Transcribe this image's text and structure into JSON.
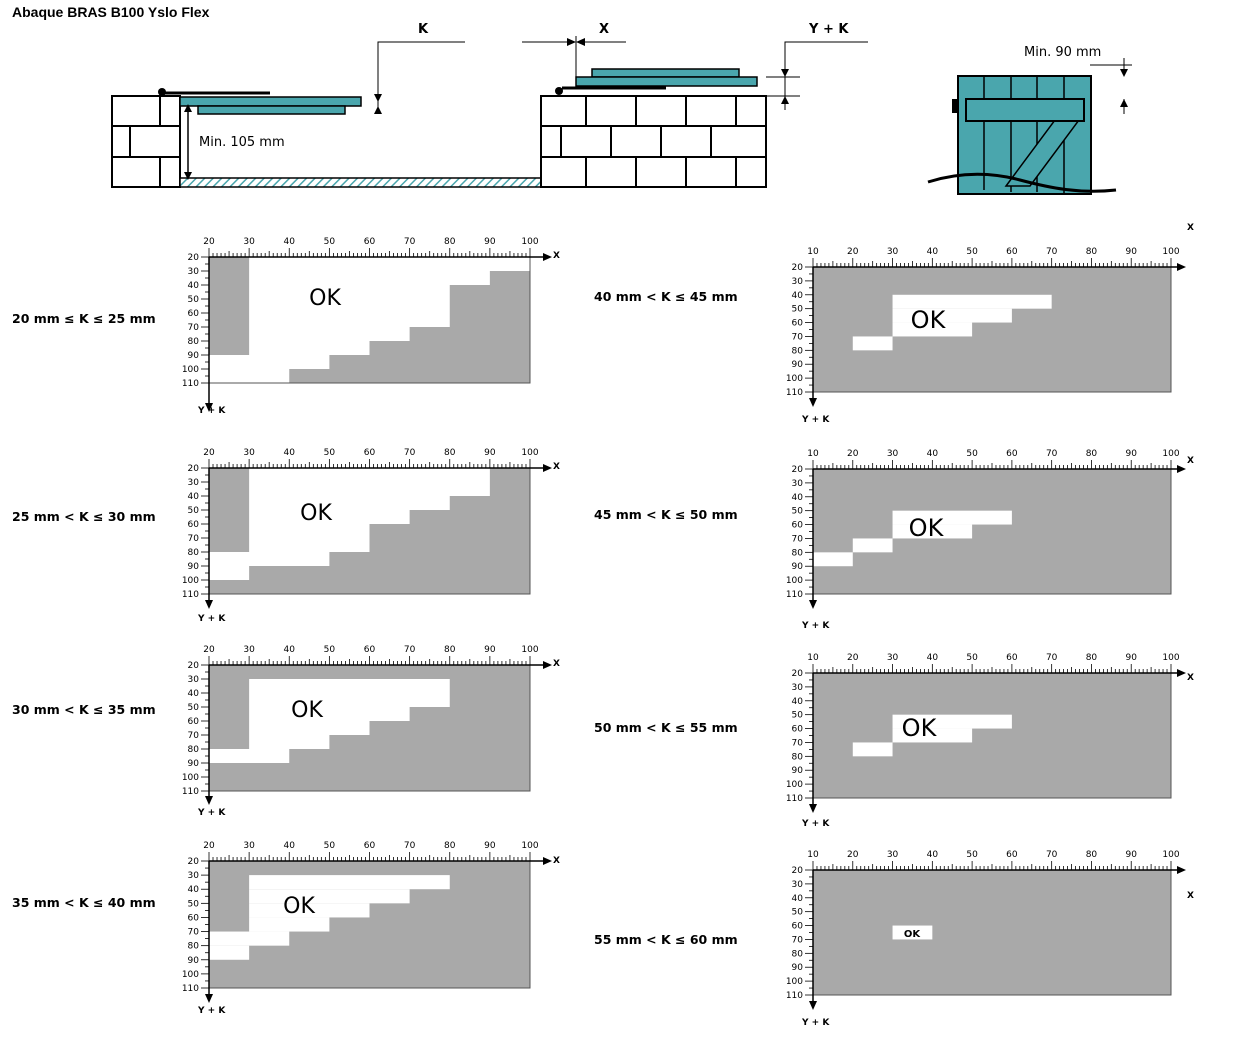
{
  "title": "Abaque BRAS B100 Yslo Flex",
  "diagram": {
    "k_label": "K",
    "x_label": "X",
    "yk_label": "Y + K",
    "min_105": "Min. 105 mm",
    "min_90": "Min. 90 mm"
  },
  "colors": {
    "teal": "#4aa6ad",
    "grey": "#a9a9a9",
    "white": "#ffffff"
  },
  "axis": {
    "x_name": "X",
    "y_name": "Y + K",
    "ok_text": "OK"
  },
  "chart_data": [
    {
      "type": "heatmap",
      "label": "20 mm ≤ K ≤ 25 mm",
      "x_range": [
        20,
        100
      ],
      "y_ticks": [
        20,
        30,
        40,
        50,
        60,
        70,
        80,
        90,
        100,
        110
      ],
      "ok_cells": [
        {
          "x0": 30,
          "x1": 100,
          "y0": 20,
          "y1": 30
        },
        {
          "x0": 30,
          "x1": 90,
          "y0": 30,
          "y1": 40
        },
        {
          "x0": 30,
          "x1": 80,
          "y0": 40,
          "y1": 70
        },
        {
          "x0": 30,
          "x1": 70,
          "y0": 70,
          "y1": 80
        },
        {
          "x0": 30,
          "x1": 60,
          "y0": 80,
          "y1": 90
        },
        {
          "x0": 20,
          "x1": 50,
          "y0": 90,
          "y1": 100
        },
        {
          "x0": 20,
          "x1": 40,
          "y0": 100,
          "y1": 110
        }
      ]
    },
    {
      "type": "heatmap",
      "label": "25 mm < K ≤ 30 mm",
      "x_range": [
        20,
        100
      ],
      "y_ticks": [
        20,
        30,
        40,
        50,
        60,
        70,
        80,
        90,
        100,
        110
      ],
      "ok_cells": [
        {
          "x0": 30,
          "x1": 90,
          "y0": 20,
          "y1": 40
        },
        {
          "x0": 30,
          "x1": 80,
          "y0": 40,
          "y1": 50
        },
        {
          "x0": 30,
          "x1": 70,
          "y0": 50,
          "y1": 60
        },
        {
          "x0": 30,
          "x1": 60,
          "y0": 60,
          "y1": 80
        },
        {
          "x0": 20,
          "x1": 50,
          "y0": 80,
          "y1": 90
        },
        {
          "x0": 20,
          "x1": 30,
          "y0": 90,
          "y1": 100
        }
      ]
    },
    {
      "type": "heatmap",
      "label": "30 mm < K ≤ 35 mm",
      "x_range": [
        20,
        100
      ],
      "y_ticks": [
        20,
        30,
        40,
        50,
        60,
        70,
        80,
        90,
        100,
        110
      ],
      "ok_cells": [
        {
          "x0": 30,
          "x1": 80,
          "y0": 30,
          "y1": 50
        },
        {
          "x0": 30,
          "x1": 70,
          "y0": 50,
          "y1": 60
        },
        {
          "x0": 30,
          "x1": 60,
          "y0": 60,
          "y1": 70
        },
        {
          "x0": 30,
          "x1": 50,
          "y0": 70,
          "y1": 80
        },
        {
          "x0": 20,
          "x1": 40,
          "y0": 80,
          "y1": 90
        }
      ]
    },
    {
      "type": "heatmap",
      "label": "35 mm < K ≤ 40 mm",
      "x_range": [
        20,
        100
      ],
      "y_ticks": [
        20,
        30,
        40,
        50,
        60,
        70,
        80,
        90,
        100,
        110
      ],
      "ok_cells": [
        {
          "x0": 30,
          "x1": 80,
          "y0": 30,
          "y1": 40
        },
        {
          "x0": 30,
          "x1": 70,
          "y0": 40,
          "y1": 50
        },
        {
          "x0": 30,
          "x1": 60,
          "y0": 50,
          "y1": 60
        },
        {
          "x0": 30,
          "x1": 50,
          "y0": 60,
          "y1": 70
        },
        {
          "x0": 20,
          "x1": 40,
          "y0": 70,
          "y1": 80
        },
        {
          "x0": 20,
          "x1": 30,
          "y0": 80,
          "y1": 90
        }
      ]
    },
    {
      "type": "heatmap",
      "label": "40 mm < K ≤ 45 mm",
      "x_range": [
        10,
        100
      ],
      "y_ticks": [
        20,
        30,
        40,
        50,
        60,
        70,
        80,
        90,
        100,
        110
      ],
      "ok_cells": [
        {
          "x0": 30,
          "x1": 70,
          "y0": 40,
          "y1": 50
        },
        {
          "x0": 30,
          "x1": 60,
          "y0": 50,
          "y1": 60
        },
        {
          "x0": 30,
          "x1": 50,
          "y0": 60,
          "y1": 70
        },
        {
          "x0": 20,
          "x1": 30,
          "y0": 70,
          "y1": 80
        }
      ]
    },
    {
      "type": "heatmap",
      "label": "45 mm < K ≤ 50 mm",
      "x_range": [
        10,
        100
      ],
      "y_ticks": [
        20,
        30,
        40,
        50,
        60,
        70,
        80,
        90,
        100,
        110
      ],
      "ok_cells": [
        {
          "x0": 30,
          "x1": 60,
          "y0": 50,
          "y1": 60
        },
        {
          "x0": 30,
          "x1": 50,
          "y0": 60,
          "y1": 70
        },
        {
          "x0": 20,
          "x1": 30,
          "y0": 70,
          "y1": 80
        },
        {
          "x0": 10,
          "x1": 20,
          "y0": 80,
          "y1": 90
        }
      ]
    },
    {
      "type": "heatmap",
      "label": "50 mm < K ≤ 55 mm",
      "x_range": [
        10,
        100
      ],
      "y_ticks": [
        20,
        30,
        40,
        50,
        60,
        70,
        80,
        90,
        100,
        110
      ],
      "ok_cells": [
        {
          "x0": 30,
          "x1": 60,
          "y0": 50,
          "y1": 60
        },
        {
          "x0": 30,
          "x1": 50,
          "y0": 60,
          "y1": 70
        },
        {
          "x0": 20,
          "x1": 30,
          "y0": 70,
          "y1": 80
        }
      ]
    },
    {
      "type": "heatmap",
      "label": "55 mm < K ≤ 60 mm",
      "x_range": [
        10,
        100
      ],
      "y_ticks": [
        20,
        30,
        40,
        50,
        60,
        70,
        80,
        90,
        100,
        110
      ],
      "ok_cells": [
        {
          "x0": 30,
          "x1": 40,
          "y0": 60,
          "y1": 70
        }
      ]
    }
  ]
}
